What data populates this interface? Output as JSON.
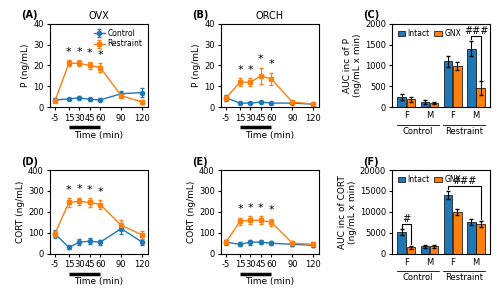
{
  "chart_data": [
    {
      "type": "line",
      "panel_label": "(A)",
      "title": "OVX",
      "xlabel": "Time (min)",
      "ylabel": "P (ng/mL)",
      "x": [
        -5,
        15,
        30,
        45,
        60,
        90,
        120
      ],
      "xlim": [
        -12,
        128
      ],
      "xticks": [
        -5,
        15,
        30,
        45,
        60,
        90,
        120
      ],
      "ylim": [
        0,
        40
      ],
      "yticks": [
        0,
        10,
        20,
        30,
        40
      ],
      "series": [
        {
          "name": "Control",
          "marker": "o",
          "line_style": "solid",
          "values": [
            3.5,
            4.0,
            4.5,
            3.8,
            3.5,
            6.5,
            7.0
          ],
          "errors": [
            0.8,
            0.6,
            0.7,
            0.6,
            0.7,
            1.5,
            2.0
          ]
        },
        {
          "name": "Restraint",
          "marker": "s",
          "line_style": "solid",
          "values": [
            3.0,
            21.0,
            21.0,
            20.0,
            19.0,
            5.5,
            2.5
          ],
          "errors": [
            0.5,
            1.5,
            1.5,
            1.8,
            2.0,
            1.0,
            0.8
          ],
          "annotations": [
            null,
            "*",
            "*",
            "*",
            "*",
            null,
            null
          ]
        }
      ],
      "stress_bar": [
        15,
        60
      ],
      "legend": "upper right"
    },
    {
      "type": "line",
      "panel_label": "(B)",
      "title": "ORCH",
      "xlabel": "Time (min)",
      "ylabel": "P (ng/mL)",
      "x": [
        -5,
        15,
        30,
        45,
        60,
        90,
        120
      ],
      "xlim": [
        -12,
        128
      ],
      "xticks": [
        -5,
        15,
        30,
        45,
        60,
        90,
        120
      ],
      "ylim": [
        0,
        40
      ],
      "yticks": [
        0,
        10,
        20,
        30,
        40
      ],
      "series": [
        {
          "marker": "o",
          "line_style": "solid",
          "values": [
            4.5,
            2.0,
            2.0,
            2.5,
            2.0,
            2.0,
            1.5
          ],
          "errors": [
            1.5,
            0.5,
            0.5,
            0.5,
            0.5,
            0.5,
            0.5
          ]
        },
        {
          "marker": "s",
          "line_style": "solid",
          "values": [
            4.5,
            12.0,
            12.0,
            15.0,
            13.5,
            2.5,
            1.5
          ],
          "errors": [
            1.0,
            2.0,
            2.0,
            4.0,
            3.0,
            0.5,
            0.5
          ],
          "annotations": [
            null,
            "*",
            "*",
            "*",
            "*",
            null,
            null
          ]
        }
      ],
      "stress_bar": [
        15,
        60
      ]
    },
    {
      "type": "bar",
      "panel_label": "(C)",
      "ylabel": "AUC inc of P\n(ng/mL x min)",
      "categories": [
        "F",
        "M",
        "F",
        "M"
      ],
      "groups": [
        "Control",
        "Control",
        "Restraint",
        "Restraint"
      ],
      "ylim": [
        0,
        2000
      ],
      "yticks": [
        0,
        500,
        1000,
        1500,
        2000
      ],
      "series": [
        {
          "name": "Intact",
          "values": [
            250,
            130,
            1100,
            1400
          ],
          "errors": [
            70,
            40,
            130,
            180
          ]
        },
        {
          "name": "GNX",
          "values": [
            190,
            100,
            990,
            460
          ],
          "errors": [
            55,
            30,
            100,
            160
          ]
        }
      ],
      "brackets": [
        {
          "from": {
            "category": 3,
            "series": "Intact"
          },
          "to": {
            "category": 3,
            "series": "GNX"
          },
          "label": "###"
        }
      ],
      "legend": "upper left"
    },
    {
      "type": "line",
      "panel_label": "(D)",
      "xlabel": "Time (min)",
      "ylabel": "CORT (ng/mL)",
      "x": [
        -5,
        15,
        30,
        45,
        60,
        90,
        120
      ],
      "xlim": [
        -12,
        128
      ],
      "xticks": [
        -5,
        15,
        30,
        45,
        60,
        90,
        120
      ],
      "ylim": [
        0,
        400
      ],
      "yticks": [
        0,
        100,
        200,
        300,
        400
      ],
      "series": [
        {
          "marker": "o",
          "line_style": "solid",
          "values": [
            95,
            30,
            55,
            60,
            55,
            120,
            55
          ],
          "errors": [
            20,
            8,
            15,
            15,
            12,
            25,
            15
          ]
        },
        {
          "marker": "s",
          "line_style": "solid",
          "values": [
            95,
            245,
            250,
            245,
            235,
            135,
            90
          ],
          "errors": [
            15,
            20,
            18,
            20,
            22,
            25,
            20
          ],
          "annotations": [
            null,
            "*",
            "*",
            "*",
            "*",
            null,
            null
          ]
        }
      ],
      "stress_bar": [
        15,
        60
      ]
    },
    {
      "type": "line",
      "panel_label": "(E)",
      "xlabel": "Time (min)",
      "ylabel": "CORT (ng/mL)",
      "x": [
        -5,
        15,
        30,
        45,
        60,
        90,
        120
      ],
      "xlim": [
        -12,
        128
      ],
      "xticks": [
        -5,
        15,
        30,
        45,
        60,
        90,
        120
      ],
      "ylim": [
        0,
        400
      ],
      "yticks": [
        0,
        100,
        200,
        300,
        400
      ],
      "series": [
        {
          "marker": "o",
          "line_style": "solid",
          "values": [
            55,
            45,
            55,
            55,
            50,
            45,
            40
          ],
          "errors": [
            12,
            10,
            12,
            10,
            10,
            10,
            10
          ]
        },
        {
          "marker": "s",
          "line_style": "solid",
          "values": [
            55,
            155,
            160,
            160,
            150,
            50,
            45
          ],
          "errors": [
            10,
            18,
            18,
            18,
            18,
            12,
            12
          ],
          "annotations": [
            null,
            "*",
            "*",
            "*",
            "*",
            null,
            null
          ]
        }
      ],
      "stress_bar": [
        15,
        60
      ]
    },
    {
      "type": "bar",
      "panel_label": "(F)",
      "ylabel": "AUC inc of CORT\n(ng/mL x min)",
      "categories": [
        "F",
        "M",
        "F",
        "M"
      ],
      "groups": [
        "Control",
        "Control",
        "Restraint",
        "Restraint"
      ],
      "ylim": [
        0,
        20000
      ],
      "yticks": [
        0,
        5000,
        10000,
        15000,
        20000
      ],
      "series": [
        {
          "name": "Intact",
          "values": [
            5100,
            1800,
            14000,
            7500
          ],
          "errors": [
            700,
            350,
            1000,
            700
          ]
        },
        {
          "name": "GNX",
          "values": [
            1500,
            1800,
            10000,
            7200
          ],
          "errors": [
            350,
            350,
            700,
            700
          ]
        }
      ],
      "brackets": [
        {
          "from": {
            "category": 0,
            "series": "Intact"
          },
          "to": {
            "category": 0,
            "series": "GNX"
          },
          "label": "#"
        },
        {
          "from": {
            "category": 2,
            "series": "Intact"
          },
          "to": {
            "category": 3,
            "series": "GNX"
          },
          "label": "###"
        }
      ],
      "legend": "upper left"
    }
  ]
}
